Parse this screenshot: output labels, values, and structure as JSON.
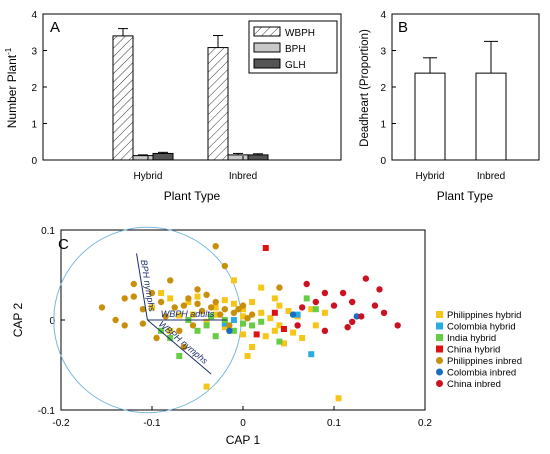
{
  "chart_data": [
    {
      "panel": "A",
      "type": "bar",
      "xlabel": "Plant Type",
      "ylabel": "Number Plant",
      "ylabel_sup": "-1",
      "ylim": [
        0,
        4
      ],
      "yticks": [
        0,
        1,
        2,
        3,
        4
      ],
      "categories": [
        "Hybrid",
        "Inbred"
      ],
      "series": [
        {
          "name": "WBPH",
          "values": [
            3.4,
            3.08
          ],
          "errors": [
            0.2,
            0.33
          ],
          "fill": "hatch"
        },
        {
          "name": "BPH",
          "values": [
            0.12,
            0.14
          ],
          "errors": [
            0.02,
            0.04
          ],
          "fill": "#c8c8c8"
        },
        {
          "name": "GLH",
          "values": [
            0.18,
            0.14
          ],
          "errors": [
            0.03,
            0.03
          ],
          "fill": "#555555"
        }
      ],
      "legend": "top-right"
    },
    {
      "panel": "B",
      "type": "bar",
      "xlabel": "Plant Type",
      "ylabel": "Deadheart (Proportion)",
      "ylim": [
        0,
        4
      ],
      "yticks": [
        0,
        1,
        2,
        3,
        4
      ],
      "categories": [
        "Hybrid",
        "Inbred"
      ],
      "values": [
        2.38,
        2.38
      ],
      "errors": [
        0.42,
        0.87
      ]
    },
    {
      "panel": "C",
      "type": "scatter",
      "xlabel": "CAP 1",
      "ylabel": "CAP 2",
      "xlim": [
        -0.2,
        0.2
      ],
      "ylim": [
        -0.1,
        0.1
      ],
      "xticks": [
        -0.2,
        -0.1,
        0,
        0.1,
        0.2
      ],
      "yticks": [
        -0.1,
        0,
        0.1
      ],
      "circle": {
        "cx": -0.105,
        "cy": 0,
        "r": 0.103,
        "color": "#7ab8dd"
      },
      "vectors": [
        {
          "label": "BPH nymphs",
          "dx": -0.012,
          "dy": 0.074
        },
        {
          "label": "WBPH adults",
          "dx": 0.088,
          "dy": 0.0
        },
        {
          "label": "WBPH nymphs",
          "dx": 0.07,
          "dy": -0.06
        }
      ],
      "legend": "right",
      "series": [
        {
          "name": "Philippines hybrid",
          "shape": "square",
          "color": "#f5c518",
          "points": [
            [
              -0.08,
              0.024
            ],
            [
              -0.06,
              0.02
            ],
            [
              -0.05,
              0.026
            ],
            [
              -0.03,
              0.014
            ],
            [
              -0.02,
              0.022
            ],
            [
              -0.01,
              0.018
            ],
            [
              0.0,
              0.012
            ],
            [
              0.01,
              0.02
            ],
            [
              -0.07,
              0.005
            ],
            [
              -0.04,
              -0.002
            ],
            [
              -0.03,
              0.006
            ],
            [
              -0.02,
              -0.008
            ],
            [
              0.0,
              0.004
            ],
            [
              0.02,
              0.008
            ],
            [
              0.03,
              0.002
            ],
            [
              0.035,
              -0.012
            ],
            [
              0.04,
              0.016
            ],
            [
              0.045,
              -0.026
            ],
            [
              0.05,
              0.01
            ],
            [
              0.055,
              -0.014
            ],
            [
              0.06,
              0.004
            ],
            [
              0.065,
              -0.02
            ],
            [
              0.075,
              0.012
            ],
            [
              0.08,
              -0.006
            ],
            [
              0.09,
              0.008
            ],
            [
              -0.01,
              0.044
            ],
            [
              0.02,
              0.036
            ],
            [
              -0.08,
              -0.012
            ],
            [
              -0.1,
              0.014
            ],
            [
              -0.04,
              -0.074
            ],
            [
              0.005,
              -0.04
            ],
            [
              0.01,
              -0.03
            ],
            [
              0.025,
              -0.018
            ],
            [
              0.04,
              -0.006
            ],
            [
              0.105,
              -0.087
            ],
            [
              -0.09,
              0.03
            ],
            [
              -0.055,
              0.006
            ],
            [
              0.0,
              -0.016
            ],
            [
              0.035,
              0.024
            ]
          ]
        },
        {
          "name": "Colombia hybrid",
          "shape": "square",
          "color": "#29abe2",
          "points": [
            [
              0.06,
              0.006
            ],
            [
              0.075,
              -0.038
            ],
            [
              -0.02,
              -0.004
            ],
            [
              -0.01,
              0.0
            ]
          ]
        },
        {
          "name": "India hybrid",
          "shape": "square",
          "color": "#66cc44",
          "points": [
            [
              -0.09,
              -0.012
            ],
            [
              -0.08,
              -0.02
            ],
            [
              -0.07,
              -0.04
            ],
            [
              -0.06,
              0.0
            ],
            [
              -0.05,
              -0.012
            ],
            [
              -0.04,
              -0.006
            ],
            [
              -0.03,
              -0.018
            ],
            [
              -0.02,
              0.0
            ],
            [
              -0.01,
              -0.012
            ],
            [
              0.01,
              -0.006
            ],
            [
              0.02,
              -0.002
            ],
            [
              0.04,
              -0.024
            ],
            [
              0.07,
              0.024
            ],
            [
              0.08,
              0.012
            ],
            [
              -0.035,
              0.004
            ],
            [
              0.0,
              -0.004
            ]
          ]
        },
        {
          "name": "China hybrid",
          "shape": "square",
          "color": "#dd1111",
          "points": [
            [
              0.025,
              0.08
            ],
            [
              0.035,
              0.008
            ],
            [
              0.015,
              -0.016
            ],
            [
              0.045,
              -0.01
            ]
          ]
        },
        {
          "name": "Philippines inbred",
          "shape": "circle",
          "color": "#c8900a",
          "points": [
            [
              -0.155,
              0.014
            ],
            [
              -0.13,
              0.024
            ],
            [
              -0.12,
              0.026
            ],
            [
              -0.11,
              0.012
            ],
            [
              -0.1,
              0.03
            ],
            [
              -0.09,
              0.02
            ],
            [
              -0.085,
              0.004
            ],
            [
              -0.075,
              0.014
            ],
            [
              -0.065,
              0.016
            ],
            [
              -0.06,
              0.024
            ],
            [
              -0.055,
              -0.006
            ],
            [
              -0.05,
              0.018
            ],
            [
              -0.045,
              0.01
            ],
            [
              -0.04,
              0.028
            ],
            [
              -0.035,
              0.014
            ],
            [
              -0.03,
              0.02
            ],
            [
              -0.025,
              0.006
            ],
            [
              -0.02,
              0.012
            ],
            [
              -0.015,
              -0.006
            ],
            [
              -0.01,
              0.008
            ],
            [
              -0.005,
              0.012
            ],
            [
              0.0,
              0.016
            ],
            [
              0.005,
              0.002
            ],
            [
              0.01,
              0.006
            ],
            [
              -0.03,
              0.082
            ],
            [
              -0.11,
              -0.004
            ],
            [
              -0.13,
              -0.006
            ],
            [
              -0.14,
              0.0
            ],
            [
              -0.07,
              -0.012
            ],
            [
              -0.05,
              0.034
            ],
            [
              -0.02,
              0.06
            ],
            [
              0.04,
              0.036
            ],
            [
              -0.08,
              0.044
            ],
            [
              -0.095,
              -0.02
            ],
            [
              -0.12,
              0.04
            ],
            [
              -0.065,
              -0.03
            ]
          ]
        },
        {
          "name": "Colombia inbred",
          "shape": "circle",
          "color": "#1a6ec0",
          "points": [
            [
              -0.015,
              -0.012
            ],
            [
              0.055,
              0.006
            ],
            [
              0.125,
              0.004
            ]
          ]
        },
        {
          "name": "China inbred",
          "shape": "circle",
          "color": "#cc1122",
          "points": [
            [
              0.07,
              0.04
            ],
            [
              0.09,
              0.03
            ],
            [
              0.11,
              0.03
            ],
            [
              0.12,
              0.02
            ],
            [
              0.135,
              0.046
            ],
            [
              0.145,
              0.016
            ],
            [
              0.15,
              0.034
            ],
            [
              0.1,
              0.016
            ],
            [
              0.08,
              0.02
            ],
            [
              0.065,
              0.014
            ],
            [
              0.13,
              0.004
            ],
            [
              0.115,
              -0.008
            ],
            [
              0.17,
              -0.006
            ],
            [
              0.155,
              0.008
            ],
            [
              0.09,
              -0.012
            ],
            [
              0.06,
              -0.006
            ],
            [
              0.12,
              -0.002
            ]
          ]
        }
      ]
    }
  ]
}
